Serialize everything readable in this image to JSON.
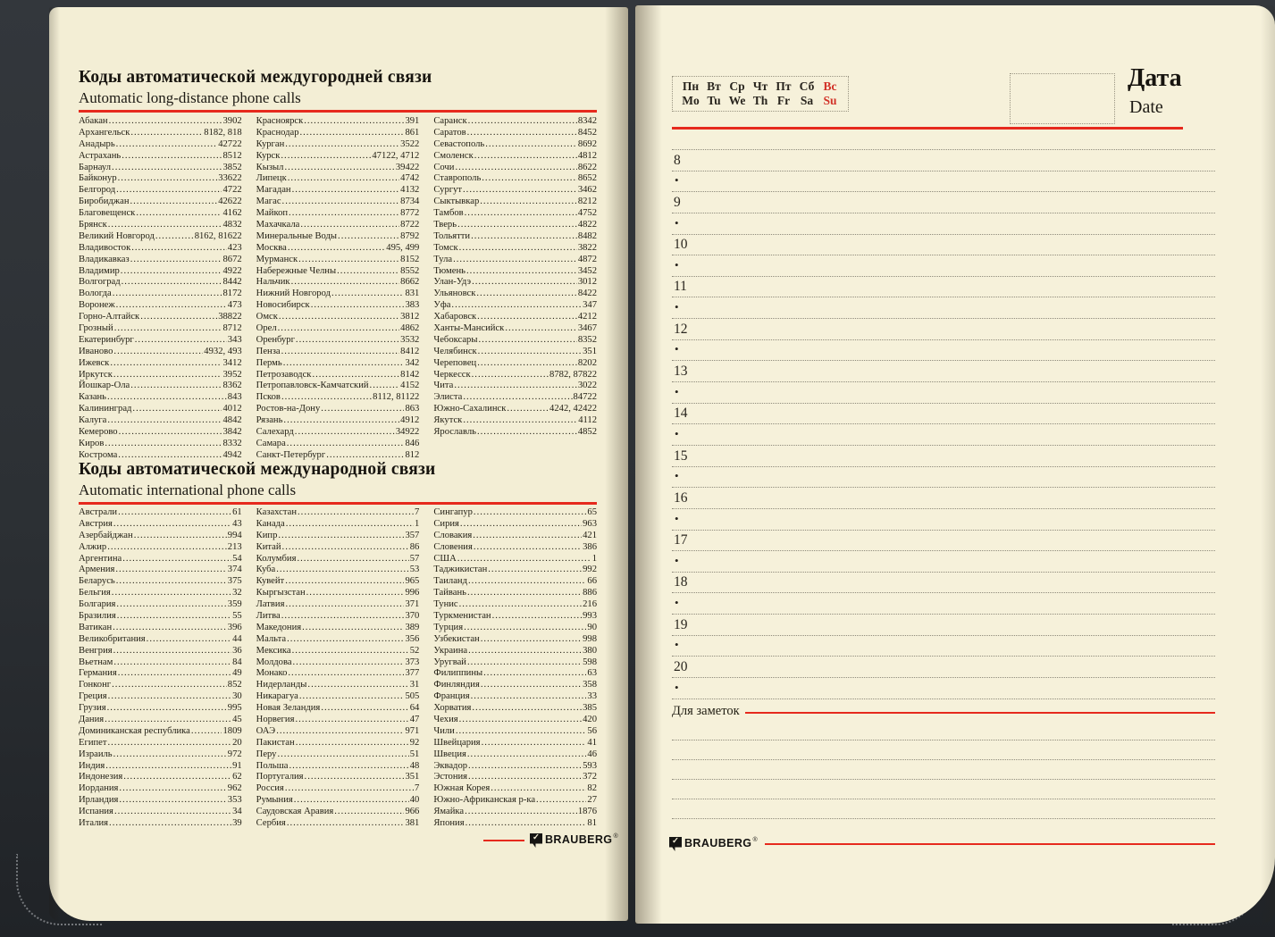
{
  "colors": {
    "accent_red": "#e62a1d",
    "weekend_red": "#d23228",
    "paper": "#f3eed5",
    "cover": "#2c3034"
  },
  "brand": {
    "name": "BRAUBERG",
    "reg": "®"
  },
  "left_page": {
    "section1": {
      "title_ru": "Коды автоматической междугородней связи",
      "title_en": "Automatic long-distance phone calls",
      "columns": [
        [
          [
            "Абакан",
            "3902"
          ],
          [
            "Архангельск",
            "8182, 818"
          ],
          [
            "Анадырь",
            "42722"
          ],
          [
            "Астрахань",
            "8512"
          ],
          [
            "Барнаул",
            "3852"
          ],
          [
            "Байконур",
            "33622"
          ],
          [
            "Белгород",
            "4722"
          ],
          [
            "Биробиджан",
            "42622"
          ],
          [
            "Благовещенск",
            "4162"
          ],
          [
            "Брянск",
            "4832"
          ],
          [
            "Великий Новгород",
            "8162, 81622"
          ],
          [
            "Владивосток",
            "423"
          ],
          [
            "Владикавказ",
            "8672"
          ],
          [
            "Владимир",
            "4922"
          ],
          [
            "Волгоград",
            "8442"
          ],
          [
            "Вологда",
            "8172"
          ],
          [
            "Воронеж",
            "473"
          ],
          [
            "Горно-Алтайск",
            "38822"
          ],
          [
            "Грозный",
            "8712"
          ],
          [
            "Екатеринбург",
            "343"
          ],
          [
            "Иваново",
            "4932, 493"
          ],
          [
            "Ижевск",
            "3412"
          ],
          [
            "Иркутск",
            "3952"
          ],
          [
            "Йошкар-Ола",
            "8362"
          ],
          [
            "Казань",
            "843"
          ],
          [
            "Калининград",
            "4012"
          ],
          [
            "Калуга",
            "4842"
          ],
          [
            "Кемерово",
            "3842"
          ],
          [
            "Киров",
            "8332"
          ],
          [
            "Кострома",
            "4942"
          ]
        ],
        [
          [
            "Красноярск",
            "391"
          ],
          [
            "Краснодар",
            "861"
          ],
          [
            "Курган",
            "3522"
          ],
          [
            "Курск",
            "47122, 4712"
          ],
          [
            "Кызыл",
            "39422"
          ],
          [
            "Липецк",
            "4742"
          ],
          [
            "Магадан",
            "4132"
          ],
          [
            "Магас",
            "8734"
          ],
          [
            "Майкоп",
            "8772"
          ],
          [
            "Махачкала",
            "8722"
          ],
          [
            "Минеральные Воды",
            "8792"
          ],
          [
            "Москва",
            "495, 499"
          ],
          [
            "Мурманск",
            "8152"
          ],
          [
            "Набережные Челны",
            "8552"
          ],
          [
            "Нальчик",
            "8662"
          ],
          [
            "Нижний Новгород",
            "831"
          ],
          [
            "Новосибирск",
            "383"
          ],
          [
            "Омск",
            "3812"
          ],
          [
            "Орел",
            "4862"
          ],
          [
            "Оренбург",
            "3532"
          ],
          [
            "Пенза",
            "8412"
          ],
          [
            "Пермь",
            "342"
          ],
          [
            "Петрозаводск",
            "8142"
          ],
          [
            "Петропавловск-Камчатский",
            "4152"
          ],
          [
            "Псков",
            "8112, 81122"
          ],
          [
            "Ростов-на-Дону",
            "863"
          ],
          [
            "Рязань",
            "4912"
          ],
          [
            "Салехард",
            "34922"
          ],
          [
            "Самара",
            "846"
          ],
          [
            "Санкт-Петербург",
            "812"
          ]
        ],
        [
          [
            "Саранск",
            "8342"
          ],
          [
            "Саратов",
            "8452"
          ],
          [
            "Севастополь",
            "8692"
          ],
          [
            "Смоленск",
            "4812"
          ],
          [
            "Сочи",
            "8622"
          ],
          [
            "Ставрополь",
            "8652"
          ],
          [
            "Сургут",
            "3462"
          ],
          [
            "Сыктывкар",
            "8212"
          ],
          [
            "Тамбов",
            "4752"
          ],
          [
            "Тверь",
            "4822"
          ],
          [
            "Тольятти",
            "8482"
          ],
          [
            "Томск",
            "3822"
          ],
          [
            "Тула",
            "4872"
          ],
          [
            "Тюмень",
            "3452"
          ],
          [
            "Улан-Удэ",
            "3012"
          ],
          [
            "Ульяновск",
            "8422"
          ],
          [
            "Уфа",
            "347"
          ],
          [
            "Хабаровск",
            "4212"
          ],
          [
            "Ханты-Мансийск",
            "3467"
          ],
          [
            "Чебоксары",
            "8352"
          ],
          [
            "Челябинск",
            "351"
          ],
          [
            "Череповец",
            "8202"
          ],
          [
            "Черкесск",
            "8782, 87822"
          ],
          [
            "Чита",
            "3022"
          ],
          [
            "Элиста",
            "84722"
          ],
          [
            "Южно-Сахалинск",
            "4242, 42422"
          ],
          [
            "Якутск",
            "4112"
          ],
          [
            "Ярославль",
            "4852"
          ]
        ]
      ]
    },
    "section2": {
      "title_ru": "Коды автоматической международной связи",
      "title_en": "Automatic international phone calls",
      "columns": [
        [
          [
            "Австрали",
            "61"
          ],
          [
            "Австрия",
            "43"
          ],
          [
            "Азербайджан",
            "994"
          ],
          [
            "Алжир",
            "213"
          ],
          [
            "Аргентина",
            "54"
          ],
          [
            "Армения",
            "374"
          ],
          [
            "Беларусь",
            "375"
          ],
          [
            "Бельгия",
            "32"
          ],
          [
            "Болгария",
            "359"
          ],
          [
            "Бразилия",
            "55"
          ],
          [
            "Ватикан",
            "396"
          ],
          [
            "Великобритания",
            "44"
          ],
          [
            "Венгрия",
            "36"
          ],
          [
            "Вьетнам",
            "84"
          ],
          [
            "Германия",
            "49"
          ],
          [
            "Гонконг",
            "852"
          ],
          [
            "Греция",
            "30"
          ],
          [
            "Грузия",
            "995"
          ],
          [
            "Дания",
            "45"
          ],
          [
            "Доминиканская республика",
            "1809"
          ],
          [
            "Египет",
            "20"
          ],
          [
            "Израиль",
            "972"
          ],
          [
            "Индия",
            "91"
          ],
          [
            "Индонезия",
            "62"
          ],
          [
            "Иордания",
            "962"
          ],
          [
            "Ирландия",
            "353"
          ],
          [
            "Испания",
            "34"
          ],
          [
            "Италия",
            "39"
          ]
        ],
        [
          [
            "Казахстан",
            "7"
          ],
          [
            "Канада",
            "1"
          ],
          [
            "Кипр",
            "357"
          ],
          [
            "Китай",
            "86"
          ],
          [
            "Колумбия",
            "57"
          ],
          [
            "Куба",
            "53"
          ],
          [
            "Кувейт",
            "965"
          ],
          [
            "Кыргызстан",
            "996"
          ],
          [
            "Латвия",
            "371"
          ],
          [
            "Литва",
            "370"
          ],
          [
            "Македония",
            "389"
          ],
          [
            "Мальта",
            "356"
          ],
          [
            "Мексика",
            "52"
          ],
          [
            "Молдова",
            "373"
          ],
          [
            "Монако",
            "377"
          ],
          [
            "Нидерланды",
            "31"
          ],
          [
            "Никарагуа",
            "505"
          ],
          [
            "Новая Зеландия",
            "64"
          ],
          [
            "Норвегия",
            "47"
          ],
          [
            "ОАЭ",
            "971"
          ],
          [
            "Пакистан",
            "92"
          ],
          [
            "Перу",
            "51"
          ],
          [
            "Польша",
            "48"
          ],
          [
            "Португалия",
            "351"
          ],
          [
            "Россия",
            "7"
          ],
          [
            "Румыния",
            "40"
          ],
          [
            "Саудовская Аравия",
            "966"
          ],
          [
            "Сербия",
            "381"
          ]
        ],
        [
          [
            "Сингапур",
            "65"
          ],
          [
            "Сирия",
            "963"
          ],
          [
            "Словакия",
            "421"
          ],
          [
            "Словения",
            "386"
          ],
          [
            "США",
            "1"
          ],
          [
            "Таджикистан",
            "992"
          ],
          [
            "Таиланд",
            "66"
          ],
          [
            "Тайвань",
            "886"
          ],
          [
            "Тунис",
            "216"
          ],
          [
            "Туркменистан",
            "993"
          ],
          [
            "Турция",
            "90"
          ],
          [
            "Узбекистан",
            "998"
          ],
          [
            "Украина",
            "380"
          ],
          [
            "Уругвай",
            "598"
          ],
          [
            "Филиппины",
            "63"
          ],
          [
            "Финляндия",
            "358"
          ],
          [
            "Франция",
            "33"
          ],
          [
            "Хорватия",
            "385"
          ],
          [
            "Чехия",
            "420"
          ],
          [
            "Чили",
            "56"
          ],
          [
            "Швейцария",
            "41"
          ],
          [
            "Швеция",
            "46"
          ],
          [
            "Эквадор",
            "593"
          ],
          [
            "Эстония",
            "372"
          ],
          [
            "Южная Корея",
            "82"
          ],
          [
            "Южно-Африканская р-ка",
            "27"
          ],
          [
            "Ямайка",
            "1876"
          ],
          [
            "Япония",
            "81"
          ]
        ]
      ]
    }
  },
  "right_page": {
    "days_ru": [
      "Пн",
      "Вт",
      "Ср",
      "Чт",
      "Пт",
      "Сб",
      "Вс"
    ],
    "days_en": [
      "Mo",
      "Tu",
      "We",
      "Th",
      "Fr",
      "Sa",
      "Su"
    ],
    "weekend_index": 6,
    "date_label_ru": "Дата",
    "date_label_en": "Date",
    "hours": [
      "8",
      "9",
      "10",
      "11",
      "12",
      "13",
      "14",
      "15",
      "16",
      "17",
      "18",
      "19",
      "20"
    ],
    "bullet": "•",
    "notes_label": "Для заметок",
    "notes_lines": 5
  }
}
